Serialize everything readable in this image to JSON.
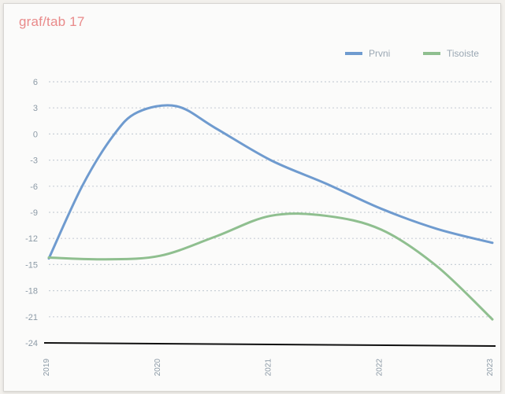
{
  "page": {
    "title": "graf/tab 17"
  },
  "colors": {
    "primary_line": "#6f9bcf",
    "secondary_line": "#8fbf8f",
    "grid": "#c9d0d7",
    "axis": "#111111",
    "title": "#e98a8a"
  },
  "chart_data": {
    "type": "line",
    "title": "graf/tab 17",
    "xlabel": "",
    "ylabel": "",
    "x": [
      "2019",
      "2020",
      "2021",
      "2022",
      "2023"
    ],
    "ylim": [
      -24,
      6
    ],
    "yticks": [
      6,
      3,
      0,
      -3,
      -6,
      -9,
      -12,
      -15,
      -18,
      -21,
      -24
    ],
    "grid": true,
    "legend_position": "top-right",
    "series": [
      {
        "name": "Prvni",
        "color": "#6f9bcf",
        "points": [
          {
            "x": 0.0,
            "y": -14.3
          },
          {
            "x": 0.3,
            "y": -6.0
          },
          {
            "x": 0.58,
            "y": -0.2
          },
          {
            "x": 0.8,
            "y": 2.5
          },
          {
            "x": 1.15,
            "y": 3.2
          },
          {
            "x": 1.5,
            "y": 0.7
          },
          {
            "x": 2.0,
            "y": -3.0
          },
          {
            "x": 2.5,
            "y": -5.7
          },
          {
            "x": 3.0,
            "y": -8.6
          },
          {
            "x": 3.5,
            "y": -10.9
          },
          {
            "x": 4.0,
            "y": -12.5
          }
        ]
      },
      {
        "name": "Tisoiste",
        "color": "#8fbf8f",
        "points": [
          {
            "x": 0.0,
            "y": -14.2
          },
          {
            "x": 0.5,
            "y": -14.4
          },
          {
            "x": 1.0,
            "y": -14.0
          },
          {
            "x": 1.5,
            "y": -11.8
          },
          {
            "x": 2.0,
            "y": -9.4
          },
          {
            "x": 2.5,
            "y": -9.4
          },
          {
            "x": 3.0,
            "y": -11.0
          },
          {
            "x": 3.5,
            "y": -15.2
          },
          {
            "x": 4.0,
            "y": -21.3
          }
        ]
      }
    ]
  }
}
